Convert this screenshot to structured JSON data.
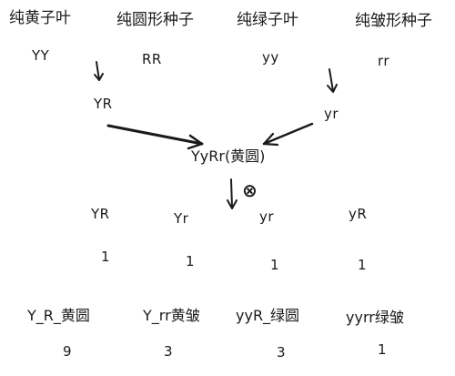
{
  "parents": {
    "p1": {
      "trait": "纯黄子叶",
      "gene": "YY"
    },
    "p2": {
      "trait": "纯圆形种子",
      "gene": "RR"
    },
    "p3": {
      "trait": "纯绿子叶",
      "gene": "yy"
    },
    "p4": {
      "trait": "纯皱形种子",
      "gene": "rr"
    }
  },
  "gametes_parent": {
    "g1": "YR",
    "g2": "yr"
  },
  "f1": {
    "genotype": "YyRr(黄圆)",
    "selfing_symbol": "⊗"
  },
  "f1_gametes": [
    {
      "gene": "YR",
      "ratio": "1"
    },
    {
      "gene": "Yr",
      "ratio": "1"
    },
    {
      "gene": "yr",
      "ratio": "1"
    },
    {
      "gene": "yR",
      "ratio": "1"
    }
  ],
  "f2_phenotypes": [
    {
      "label": "Y_R_黄圆",
      "ratio": "9"
    },
    {
      "label": "Y_rr黄皱",
      "ratio": "3"
    },
    {
      "label": "yyR_绿圆",
      "ratio": "3"
    },
    {
      "label": "yyrr绿皱",
      "ratio": "1"
    }
  ]
}
